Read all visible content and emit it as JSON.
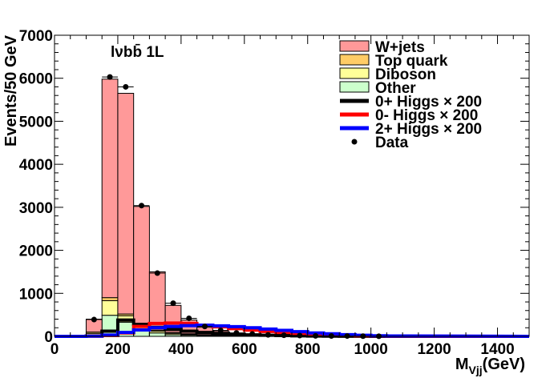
{
  "chart_data": {
    "type": "bar",
    "stacked": true,
    "annotation": "lνbb̄ 1L",
    "xlabel": "M",
    "xlabel_sub": "Vjj",
    "xlabel_unit": "(GeV)",
    "ylabel": "Events/50 GeV",
    "xlim": [
      0,
      1500
    ],
    "ylim": [
      0,
      7000
    ],
    "bin_width": 50,
    "x_ticks": [
      "0",
      "200",
      "400",
      "600",
      "800",
      "1000",
      "1200",
      "1400"
    ],
    "y_ticks": [
      "0",
      "1000",
      "2000",
      "3000",
      "4000",
      "5000",
      "6000",
      "7000"
    ],
    "bin_edges_low": [
      100,
      150,
      200,
      250,
      300,
      350,
      400,
      450,
      500,
      550,
      600,
      650,
      700,
      750,
      800,
      850,
      900,
      950,
      1000,
      1050
    ],
    "series": [
      {
        "name": "Other",
        "color": "#ccffcc",
        "values": [
          30,
          490,
          330,
          150,
          80,
          40,
          25,
          15,
          10,
          5,
          5,
          3,
          2,
          2,
          1,
          1,
          1,
          0,
          0,
          0
        ]
      },
      {
        "name": "Diboson",
        "color": "#ffff99",
        "values": [
          40,
          340,
          150,
          80,
          40,
          30,
          20,
          15,
          10,
          5,
          5,
          3,
          2,
          2,
          1,
          1,
          1,
          0,
          0,
          0
        ]
      },
      {
        "name": "Top quark",
        "color": "#ffcc66",
        "values": [
          30,
          70,
          40,
          30,
          25,
          20,
          15,
          10,
          8,
          5,
          4,
          3,
          2,
          2,
          1,
          1,
          1,
          0,
          0,
          0
        ]
      },
      {
        "name": "W+jets",
        "color": "#ff9999",
        "values": [
          300,
          5080,
          5130,
          2760,
          1355,
          630,
          320,
          170,
          102,
          55,
          36,
          21,
          14,
          9,
          6,
          4,
          2,
          2,
          1,
          1
        ]
      }
    ],
    "signals": [
      {
        "name": "0+ Higgs",
        "scale_label": "× 200",
        "color": "#000000",
        "values": [
          10,
          120,
          380,
          280,
          210,
          160,
          120,
          90,
          70,
          50,
          35,
          25,
          18,
          12,
          8,
          5,
          3,
          2,
          1,
          1
        ]
      },
      {
        "name": "0- Higgs",
        "scale_label": "× 200",
        "color": "#ff0000",
        "values": [
          5,
          20,
          80,
          230,
          300,
          310,
          300,
          260,
          220,
          180,
          145,
          115,
          90,
          70,
          50,
          35,
          25,
          15,
          10,
          5
        ]
      },
      {
        "name": "2+ Higgs",
        "scale_label": "× 200",
        "color": "#0000ff",
        "values": [
          5,
          30,
          90,
          150,
          200,
          230,
          250,
          260,
          245,
          225,
          200,
          170,
          140,
          110,
          80,
          60,
          40,
          25,
          15,
          10
        ]
      }
    ],
    "data": {
      "name": "Data",
      "x": [
        125,
        175,
        225,
        275,
        325,
        375,
        425,
        475,
        525,
        575,
        625,
        675,
        725,
        775,
        825,
        875,
        925,
        975,
        1025
      ],
      "y": [
        390,
        6030,
        5800,
        3040,
        1470,
        770,
        420,
        230,
        140,
        80,
        55,
        35,
        25,
        18,
        12,
        10,
        8,
        5,
        3
      ]
    },
    "legend_position": "top-right",
    "grid": false
  }
}
